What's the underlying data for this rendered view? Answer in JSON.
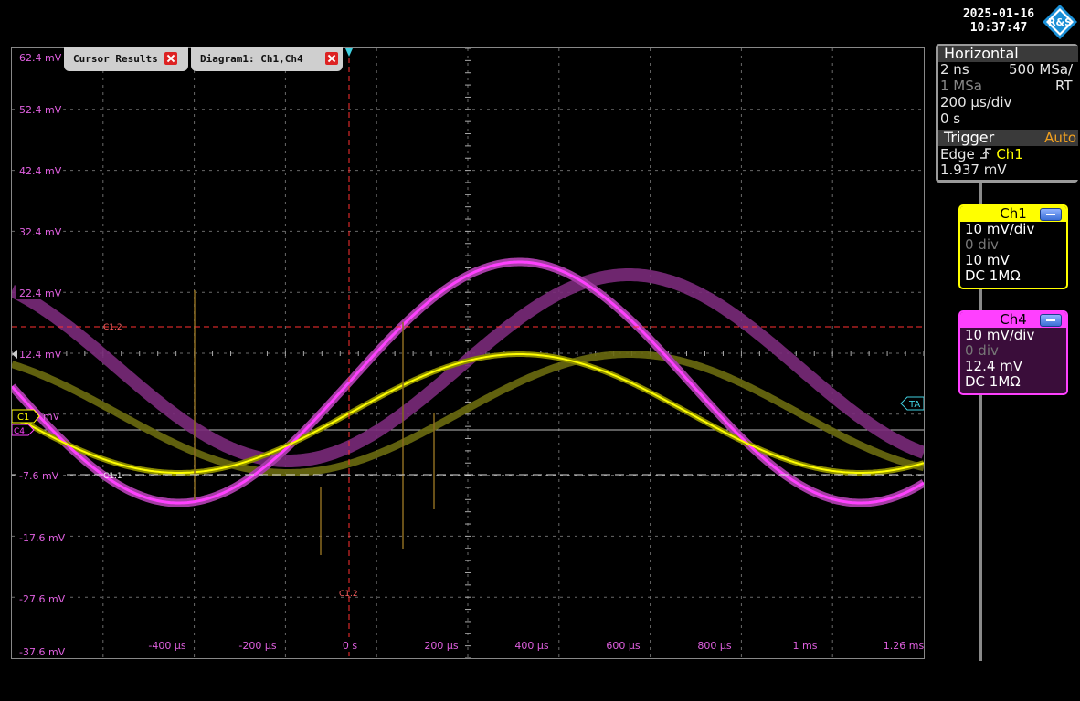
{
  "timestamp": {
    "date": "2025-01-16",
    "time": "10:37:47"
  },
  "logo": {
    "text": "R&S"
  },
  "tabs": [
    {
      "label": "Cursor Results"
    },
    {
      "label": "Diagram1: Ch1,Ch4"
    }
  ],
  "horizontal": {
    "title": "Horizontal",
    "resolution": "2 ns",
    "sample_rate": "500 MSa/",
    "record_length": "1 MSa",
    "mode": "RT",
    "time_scale": "200 µs/div",
    "position": "0 s"
  },
  "trigger": {
    "title": "Trigger",
    "mode": "Auto",
    "type": "Edge",
    "source": "Ch1",
    "level": "1.937 mV"
  },
  "channels": [
    {
      "name": "Ch1",
      "scale": "10 mV/div",
      "offset_div": "0 div",
      "offset": "10 mV",
      "coupling": "DC 1MΩ",
      "color": "#ffff00"
    },
    {
      "name": "Ch4",
      "scale": "10 mV/div",
      "offset_div": "0 div",
      "offset": "12.4 mV",
      "coupling": "DC 1MΩ",
      "color": "#ff40ff"
    }
  ],
  "y_axis_labels": [
    "62.4 mV",
    "52.4 mV",
    "42.4 mV",
    "32.4 mV",
    "22.4 mV",
    "12.4 mV",
    "-7.6 mV",
    "-17.6 mV",
    "-27.6 mV",
    "-37.6 mV"
  ],
  "x_axis_labels": [
    "-400 µs",
    "-200 µs",
    "0 s",
    "200 µs",
    "400 µs",
    "600 µs",
    "800 µs",
    "1 ms",
    "1.26 ms"
  ],
  "markers": {
    "c1": "C1",
    "c1_unit": "mV",
    "c4": "C4",
    "ta": "TA",
    "cursor_c11": "C1.1",
    "cursor_c12": "C1.2",
    "cursor_c12_vertical": "C1.2"
  },
  "colors": {
    "ch1": "#ffff00",
    "ch4": "#ff40ff",
    "cursor": "#ff3030",
    "grid": "#6a6a6a",
    "ylabel": "#e060e0"
  }
}
